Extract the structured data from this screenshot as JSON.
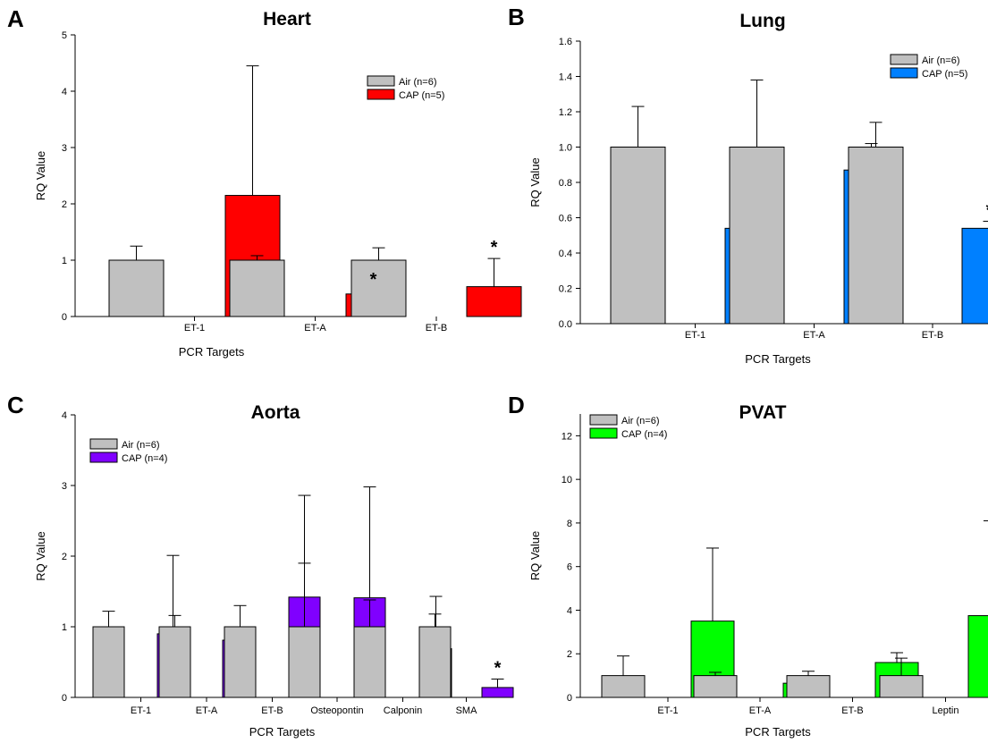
{
  "chart_data": [
    {
      "type": "bar",
      "panel": "A",
      "title": "Heart",
      "xlabel": "PCR Targets",
      "ylabel": "RQ Value",
      "ylim": [
        0,
        5
      ],
      "yticks": [
        0,
        1,
        2,
        3,
        4,
        5
      ],
      "categories": [
        "ET-1",
        "ET-A",
        "ET-B"
      ],
      "series": [
        {
          "name": "Air (n=6)",
          "color": "#c0c0c0",
          "values": [
            1.0,
            1.0,
            1.0
          ],
          "errors": [
            0.25,
            0.08,
            0.22
          ]
        },
        {
          "name": "CAP (n=5)",
          "color": "#ff0000",
          "values": [
            2.15,
            0.4,
            0.53
          ],
          "errors": [
            2.3,
            0.06,
            0.5
          ]
        }
      ],
      "significance": [
        {
          "category": 1,
          "series": 1,
          "label": "*"
        },
        {
          "category": 2,
          "series": 1,
          "label": "*"
        }
      ],
      "legend": "top-right"
    },
    {
      "type": "bar",
      "panel": "B",
      "title": "Lung",
      "xlabel": "PCR Targets",
      "ylabel": "RQ Value",
      "ylim": [
        0,
        1.6
      ],
      "yticks": [
        "0.0",
        "0.2",
        "0.4",
        "0.6",
        "0.8",
        "1.0",
        "1.2",
        "1.4",
        "1.6"
      ],
      "categories": [
        "ET-1",
        "ET-A",
        "ET-B"
      ],
      "series": [
        {
          "name": "Air (n=6)",
          "color": "#c0c0c0",
          "values": [
            1.0,
            1.0,
            1.0
          ],
          "errors": [
            0.23,
            0.38,
            0.14
          ]
        },
        {
          "name": "CAP (n=5)",
          "color": "#0080ff",
          "values": [
            0.54,
            0.87,
            0.54
          ],
          "errors": [
            0.08,
            0.15,
            0.04
          ]
        }
      ],
      "significance": [
        {
          "category": 2,
          "series": 1,
          "label": "*"
        }
      ],
      "legend": "top-right"
    },
    {
      "type": "bar",
      "panel": "C",
      "title": "Aorta",
      "xlabel": "PCR Targets",
      "ylabel": "RQ Value",
      "ylim": [
        0,
        4
      ],
      "yticks": [
        0,
        1,
        2,
        3,
        4
      ],
      "categories": [
        "ET-1",
        "ET-A",
        "ET-B",
        "Osteopontin",
        "Calponin",
        "SMA"
      ],
      "series": [
        {
          "name": "Air (n=6)",
          "color": "#c0c0c0",
          "values": [
            1.0,
            1.0,
            1.0,
            1.0,
            1.0,
            1.0
          ],
          "errors": [
            0.22,
            0.16,
            0.3,
            1.86,
            0.38,
            0.18
          ]
        },
        {
          "name": "CAP (n=4)",
          "color": "#8000ff",
          "values": [
            0.9,
            0.81,
            1.42,
            1.41,
            0.69,
            0.14
          ],
          "errors": [
            1.11,
            0.17,
            0.48,
            1.57,
            0.74,
            0.12
          ]
        }
      ],
      "significance": [
        {
          "category": 5,
          "series": 1,
          "label": "*"
        }
      ],
      "legend": "top-left"
    },
    {
      "type": "bar",
      "panel": "D",
      "title": "PVAT",
      "xlabel": "PCR Targets",
      "ylabel": "RQ Value",
      "ylim": [
        0,
        13
      ],
      "yticks": [
        0,
        2,
        4,
        6,
        8,
        10,
        12
      ],
      "categories": [
        "ET-1",
        "ET-A",
        "ET-B",
        "Leptin"
      ],
      "series": [
        {
          "name": "Air (n=6)",
          "color": "#c0c0c0",
          "values": [
            1.0,
            1.0,
            1.0,
            1.0
          ],
          "errors": [
            0.9,
            0.15,
            0.2,
            0.8
          ]
        },
        {
          "name": "CAP (n=4)",
          "color": "#00ff00",
          "values": [
            3.5,
            0.65,
            1.6,
            3.75
          ],
          "errors": [
            3.35,
            0.05,
            0.45,
            4.35
          ]
        }
      ],
      "significance": [],
      "legend": "top-left"
    }
  ]
}
